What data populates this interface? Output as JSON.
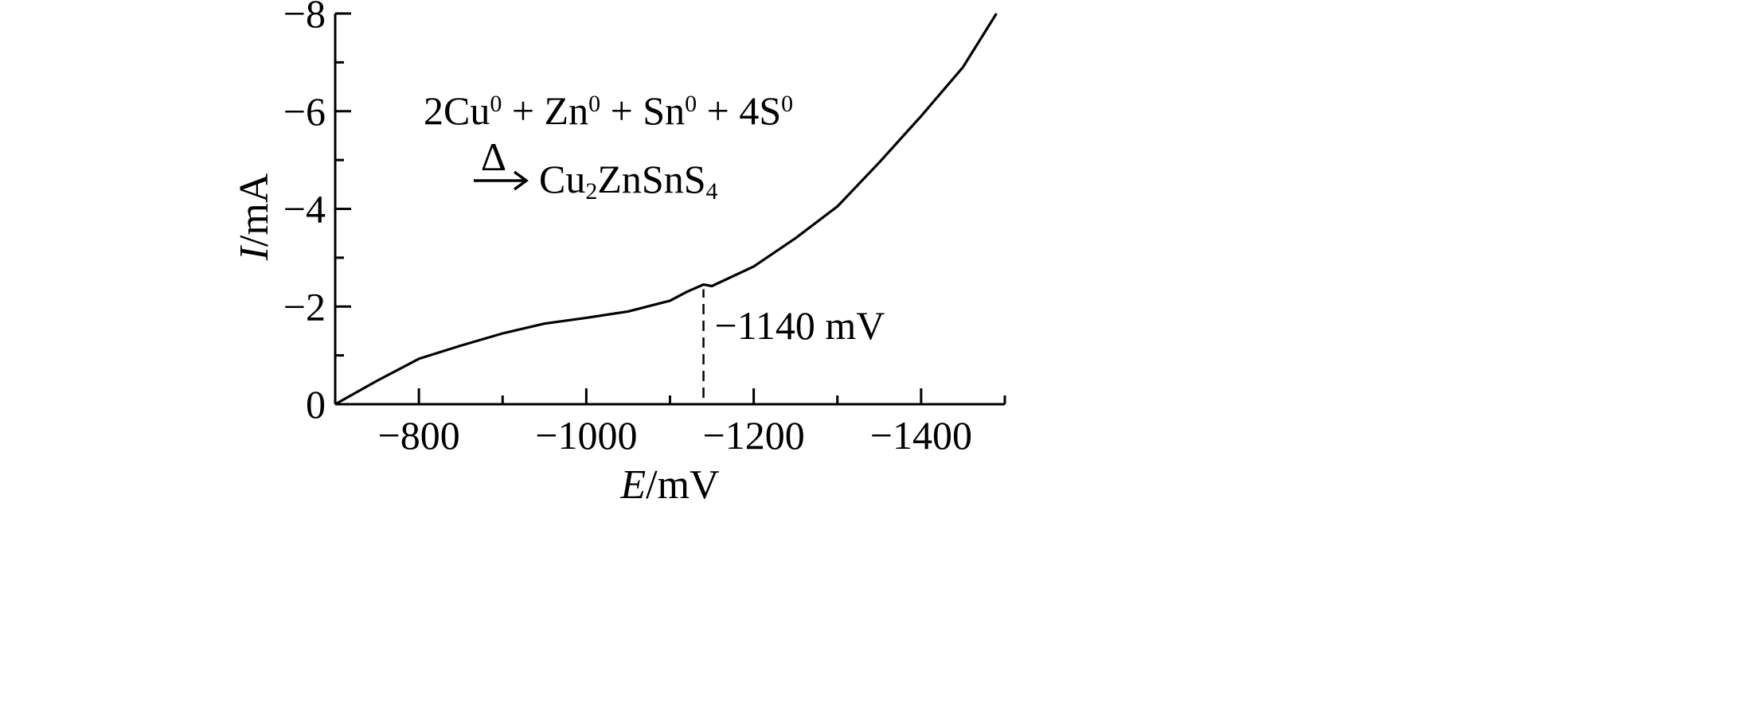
{
  "chart_data": {
    "type": "line",
    "xlabel": {
      "var": "E",
      "unit": "/mV"
    },
    "ylabel": {
      "var": "I",
      "unit": "/mA"
    },
    "xlim": [
      -700,
      -1500
    ],
    "ylim": [
      0,
      -8
    ],
    "x_ticks": [
      -800,
      -1000,
      -1200,
      -1400
    ],
    "x_tick_labels": [
      "−800",
      "−1000",
      "−1200",
      "−1400"
    ],
    "y_ticks": [
      0,
      -2,
      -4,
      -6,
      -8
    ],
    "y_tick_labels": [
      "0",
      "−2",
      "−4",
      "−6",
      "−8"
    ],
    "x_minor_step": 100,
    "y_minor_step": 1,
    "grid": false,
    "series": [
      {
        "x": [
          -700,
          -750,
          -800,
          -850,
          -900,
          -950,
          -1000,
          -1050,
          -1100,
          -1120,
          -1140,
          -1150,
          -1200,
          -1250,
          -1300,
          -1350,
          -1400,
          -1450,
          -1490
        ],
        "y": [
          0,
          -0.48,
          -0.93,
          -1.2,
          -1.45,
          -1.65,
          -1.77,
          -1.9,
          -2.12,
          -2.3,
          -2.45,
          -2.42,
          -2.82,
          -3.4,
          -4.05,
          -4.95,
          -5.9,
          -6.9,
          -8.0
        ]
      }
    ],
    "annotations": [
      {
        "type": "vline",
        "x": -1140,
        "y_from": 0,
        "y_to": -2.42,
        "style": "dashed"
      },
      {
        "type": "text",
        "text": "−1140 mV",
        "x": -1140,
        "y": -1.6
      }
    ],
    "equation": {
      "line1": [
        {
          "t": "2Cu"
        },
        {
          "sup": "0"
        },
        {
          "t": " + Zn"
        },
        {
          "sup": "0"
        },
        {
          "t": " + Sn"
        },
        {
          "sup": "0"
        },
        {
          "t": " + 4S"
        },
        {
          "sup": "0"
        }
      ],
      "arrow_label": "Δ",
      "line2": [
        {
          "t": "Cu"
        },
        {
          "sub": "2"
        },
        {
          "t": "ZnSnS"
        },
        {
          "sub": "4"
        }
      ]
    }
  }
}
